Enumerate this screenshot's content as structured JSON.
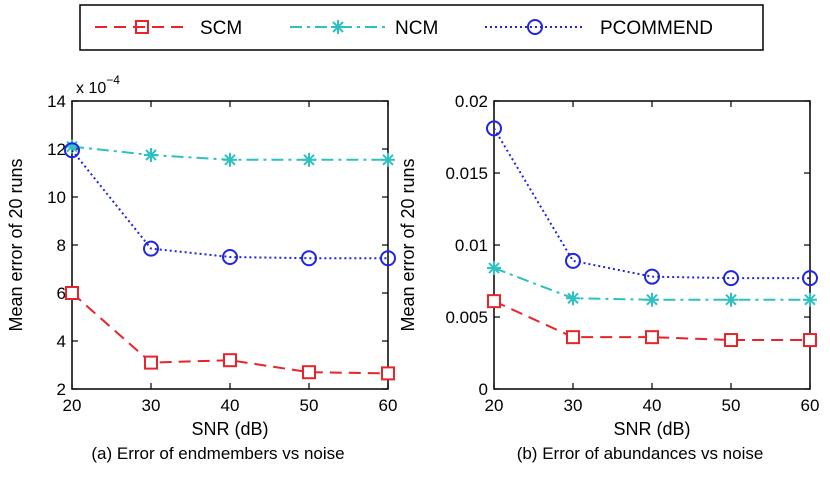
{
  "legend": [
    "SCM",
    "NCM",
    "PCOMMEND"
  ],
  "colors": {
    "SCM": "#e8242a",
    "NCM": "#2fc0c0",
    "PCOMMEND": "#1f25e0"
  },
  "chart_data": [
    {
      "type": "line",
      "caption": "(a) Error of endmembers vs noise",
      "xlabel": "SNR (dB)",
      "ylabel": "Mean error of 20 runs",
      "multiplier_base": "x 10",
      "multiplier_exp": "−4",
      "x": [
        20,
        30,
        40,
        50,
        60
      ],
      "xlim": [
        20,
        60
      ],
      "ylim": [
        2,
        14
      ],
      "xticks": [
        "20",
        "30",
        "40",
        "50",
        "60"
      ],
      "yticks": [
        2,
        4,
        6,
        8,
        10,
        12,
        14
      ],
      "ytick_labels": [
        "2",
        "4",
        "6",
        "8",
        "10",
        "12",
        "14"
      ],
      "series": [
        {
          "name": "SCM",
          "values": [
            6.0,
            3.1,
            3.2,
            2.7,
            2.65
          ]
        },
        {
          "name": "NCM",
          "values": [
            12.1,
            11.75,
            11.55,
            11.55,
            11.55
          ]
        },
        {
          "name": "PCOMMEND",
          "values": [
            11.95,
            7.85,
            7.5,
            7.45,
            7.45
          ]
        }
      ]
    },
    {
      "type": "line",
      "caption": "(b) Error of abundances vs noise",
      "xlabel": "SNR (dB)",
      "ylabel": "Mean error of 20 runs",
      "x": [
        20,
        30,
        40,
        50,
        60
      ],
      "xlim": [
        20,
        60
      ],
      "ylim": [
        0,
        0.02
      ],
      "xticks": [
        "20",
        "30",
        "40",
        "50",
        "60"
      ],
      "yticks": [
        0,
        0.005,
        0.01,
        0.015,
        0.02
      ],
      "ytick_labels": [
        "0",
        "0.005",
        "0.01",
        "0.015",
        "0.02"
      ],
      "series": [
        {
          "name": "SCM",
          "values": [
            0.0061,
            0.0036,
            0.0036,
            0.0034,
            0.0034
          ]
        },
        {
          "name": "NCM",
          "values": [
            0.0084,
            0.0063,
            0.0062,
            0.0062,
            0.0062
          ]
        },
        {
          "name": "PCOMMEND",
          "values": [
            0.0181,
            0.0089,
            0.0078,
            0.0077,
            0.0077
          ]
        }
      ]
    }
  ]
}
